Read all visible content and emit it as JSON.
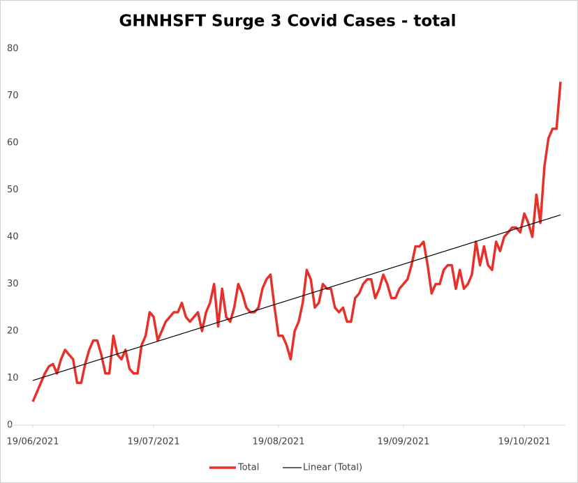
{
  "chart_data": {
    "type": "line",
    "title": "GHNHSFT Surge 3 Covid Cases - total",
    "x": [
      "19/06/2021",
      "20/06/2021",
      "21/06/2021",
      "22/06/2021",
      "23/06/2021",
      "24/06/2021",
      "25/06/2021",
      "26/06/2021",
      "27/06/2021",
      "28/06/2021",
      "29/06/2021",
      "30/06/2021",
      "01/07/2021",
      "02/07/2021",
      "03/07/2021",
      "04/07/2021",
      "05/07/2021",
      "06/07/2021",
      "07/07/2021",
      "08/07/2021",
      "09/07/2021",
      "10/07/2021",
      "11/07/2021",
      "12/07/2021",
      "13/07/2021",
      "14/07/2021",
      "15/07/2021",
      "16/07/2021",
      "17/07/2021",
      "18/07/2021",
      "19/07/2021",
      "20/07/2021",
      "21/07/2021",
      "22/07/2021",
      "23/07/2021",
      "24/07/2021",
      "25/07/2021",
      "26/07/2021",
      "27/07/2021",
      "28/07/2021",
      "29/07/2021",
      "30/07/2021",
      "31/07/2021",
      "01/08/2021",
      "02/08/2021",
      "03/08/2021",
      "04/08/2021",
      "05/08/2021",
      "06/08/2021",
      "07/08/2021",
      "08/08/2021",
      "09/08/2021",
      "10/08/2021",
      "11/08/2021",
      "12/08/2021",
      "13/08/2021",
      "14/08/2021",
      "15/08/2021",
      "16/08/2021",
      "17/08/2021",
      "18/08/2021",
      "19/08/2021",
      "20/08/2021",
      "21/08/2021",
      "22/08/2021",
      "23/08/2021",
      "24/08/2021",
      "25/08/2021",
      "26/08/2021",
      "27/08/2021",
      "28/08/2021",
      "29/08/2021",
      "30/08/2021",
      "31/08/2021",
      "01/09/2021",
      "02/09/2021",
      "03/09/2021",
      "04/09/2021",
      "05/09/2021",
      "06/09/2021",
      "07/09/2021",
      "08/09/2021",
      "09/09/2021",
      "10/09/2021",
      "11/09/2021",
      "12/09/2021",
      "13/09/2021",
      "14/09/2021",
      "15/09/2021",
      "16/09/2021",
      "17/09/2021",
      "18/09/2021",
      "19/09/2021",
      "20/09/2021",
      "21/09/2021",
      "22/09/2021",
      "23/09/2021",
      "24/09/2021",
      "25/09/2021",
      "26/09/2021",
      "27/09/2021",
      "28/09/2021",
      "29/09/2021",
      "30/09/2021",
      "01/10/2021",
      "02/10/2021",
      "03/10/2021",
      "04/10/2021",
      "05/10/2021",
      "06/10/2021",
      "07/10/2021",
      "08/10/2021",
      "09/10/2021",
      "10/10/2021",
      "11/10/2021",
      "12/10/2021",
      "13/10/2021",
      "14/10/2021",
      "15/10/2021",
      "16/10/2021",
      "17/10/2021",
      "18/10/2021",
      "19/10/2021",
      "20/10/2021",
      "21/10/2021",
      "22/10/2021",
      "23/10/2021",
      "24/10/2021",
      "25/10/2021",
      "26/10/2021",
      "27/10/2021",
      "28/10/2021"
    ],
    "series": [
      {
        "name": "Total",
        "color": "#e8302a",
        "values": [
          5,
          7,
          9,
          11,
          12.5,
          13,
          11,
          14,
          16,
          15,
          14,
          9,
          9,
          13,
          16,
          18,
          18,
          15,
          11,
          11,
          19,
          15,
          14,
          16,
          12,
          11,
          11,
          17,
          19,
          24,
          23,
          18,
          20,
          22,
          23,
          24,
          24,
          26,
          23,
          22,
          23,
          24,
          20,
          24,
          26,
          30,
          21,
          29,
          23,
          22,
          25,
          30,
          28,
          25,
          24,
          24,
          25,
          29,
          31,
          32,
          25,
          19,
          19,
          17,
          14,
          20,
          22,
          26,
          33,
          31,
          25,
          26,
          30,
          29,
          29,
          25,
          24,
          25,
          22,
          22,
          27,
          28,
          30,
          31,
          31,
          27,
          29,
          32,
          30,
          27,
          27,
          29,
          30,
          31,
          34,
          38,
          38,
          39,
          34,
          28,
          30,
          30,
          33,
          34,
          34,
          29,
          33,
          29,
          30,
          32,
          39,
          34,
          38,
          34,
          33,
          39,
          37,
          40,
          41,
          42,
          42,
          41,
          45,
          43,
          40,
          49,
          43,
          55,
          61,
          63,
          63,
          73
        ]
      },
      {
        "name": "Linear (Total)",
        "color": "#000000",
        "x": [
          "19/06/2021",
          "28/10/2021"
        ],
        "values": [
          9.5,
          44.7
        ]
      }
    ],
    "xlim": [
      "19/06/2021",
      "28/10/2021"
    ],
    "xticks": [
      "19/06/2021",
      "19/07/2021",
      "19/08/2021",
      "19/09/2021",
      "19/10/2021"
    ],
    "ylim": [
      0,
      80
    ],
    "yticks": [
      0,
      10,
      20,
      30,
      40,
      50,
      60,
      70,
      80
    ],
    "legend": "bottom"
  }
}
